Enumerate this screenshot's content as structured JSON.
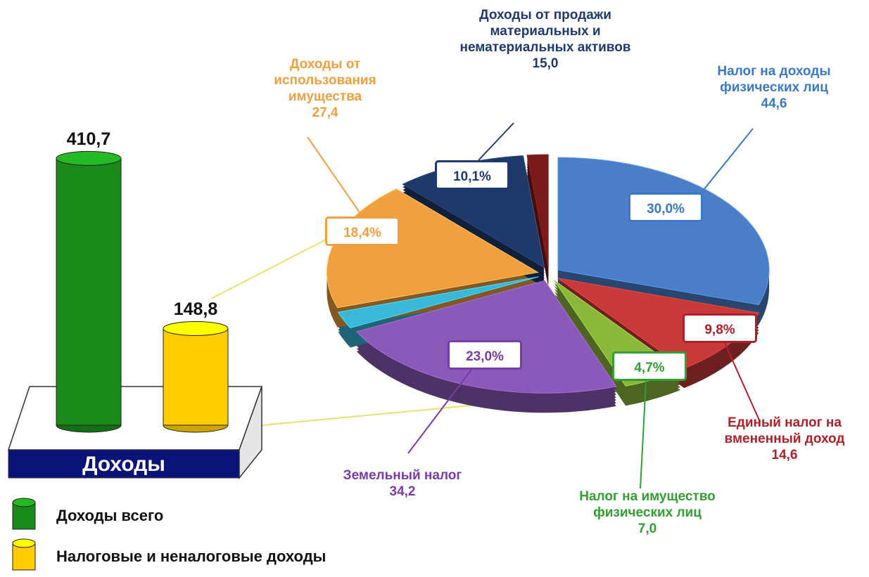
{
  "chart_data": [
    {
      "type": "bar",
      "categories": [
        "Доходы всего",
        "Налоговые и неналоговые доходы"
      ],
      "values": [
        410.7,
        148.8
      ],
      "value_labels": [
        "410,7",
        "148,8"
      ],
      "colors": [
        "#1a8a1a",
        "#ffcc00"
      ],
      "ylim": [
        0,
        450
      ],
      "base_label": "Доходы"
    },
    {
      "type": "pie",
      "categories": [
        "Налог на доходы физических лиц",
        "Единый налог на вмененный доход",
        "Налог на имущество физических лиц",
        "Земельный налог",
        null,
        "Доходы от использования имущества",
        "Доходы от продажи материальных и нематериальных активов",
        null
      ],
      "values": [
        30.0,
        9.8,
        4.7,
        23.0,
        2.4,
        18.4,
        10.1,
        1.6
      ],
      "value_labels": [
        "30,0%",
        "9,8%",
        "4,7%",
        "23,0%",
        null,
        "18,4%",
        "10,1%",
        null
      ],
      "amounts": [
        44.6,
        14.6,
        7.0,
        34.2,
        3.6,
        27.4,
        15.0,
        2.4
      ],
      "amount_labels": [
        "44,6",
        "14,6",
        "7,0",
        "34,2",
        null,
        "27,4",
        "15,0",
        null
      ],
      "colors": [
        "#4a7fc8",
        "#c83a3a",
        "#8ab83a",
        "#8a5ab8",
        "#3ab8d8",
        "#f0a040",
        "#1f3a6a",
        "#7a1a1a"
      ]
    }
  ]
}
